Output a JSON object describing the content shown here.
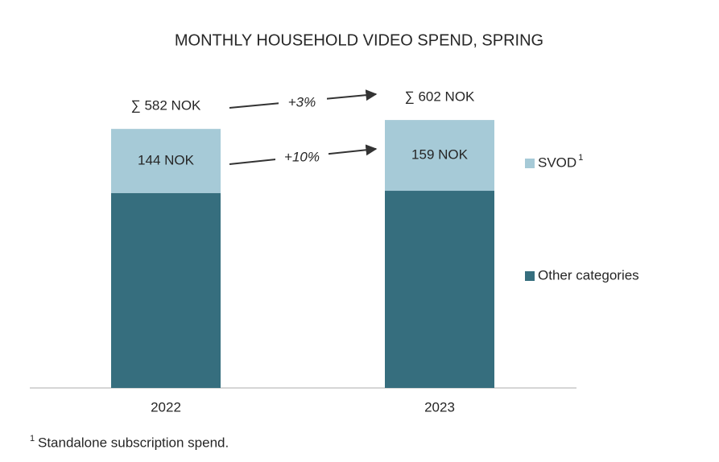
{
  "chart_data": {
    "type": "stacked_bar",
    "title": "MONTHLY HOUSEHOLD VIDEO SPEND, SPRING",
    "categories": [
      "2022",
      "2023"
    ],
    "series": [
      {
        "name": "Other categories",
        "color": "#366e7e",
        "values": [
          438,
          443
        ]
      },
      {
        "name": "SVOD",
        "name_note": "1",
        "color": "#a6cad7",
        "values": [
          144,
          159
        ],
        "value_labels": [
          "144 NOK",
          "159 NOK"
        ]
      }
    ],
    "totals": [
      582,
      602
    ],
    "total_labels": [
      "∑ 582 NOK",
      "∑ 602 NOK"
    ],
    "growth_labels": [
      "+3%",
      "+10%"
    ],
    "footnote": {
      "marker": "1",
      "text": "Standalone subscription spend."
    }
  }
}
